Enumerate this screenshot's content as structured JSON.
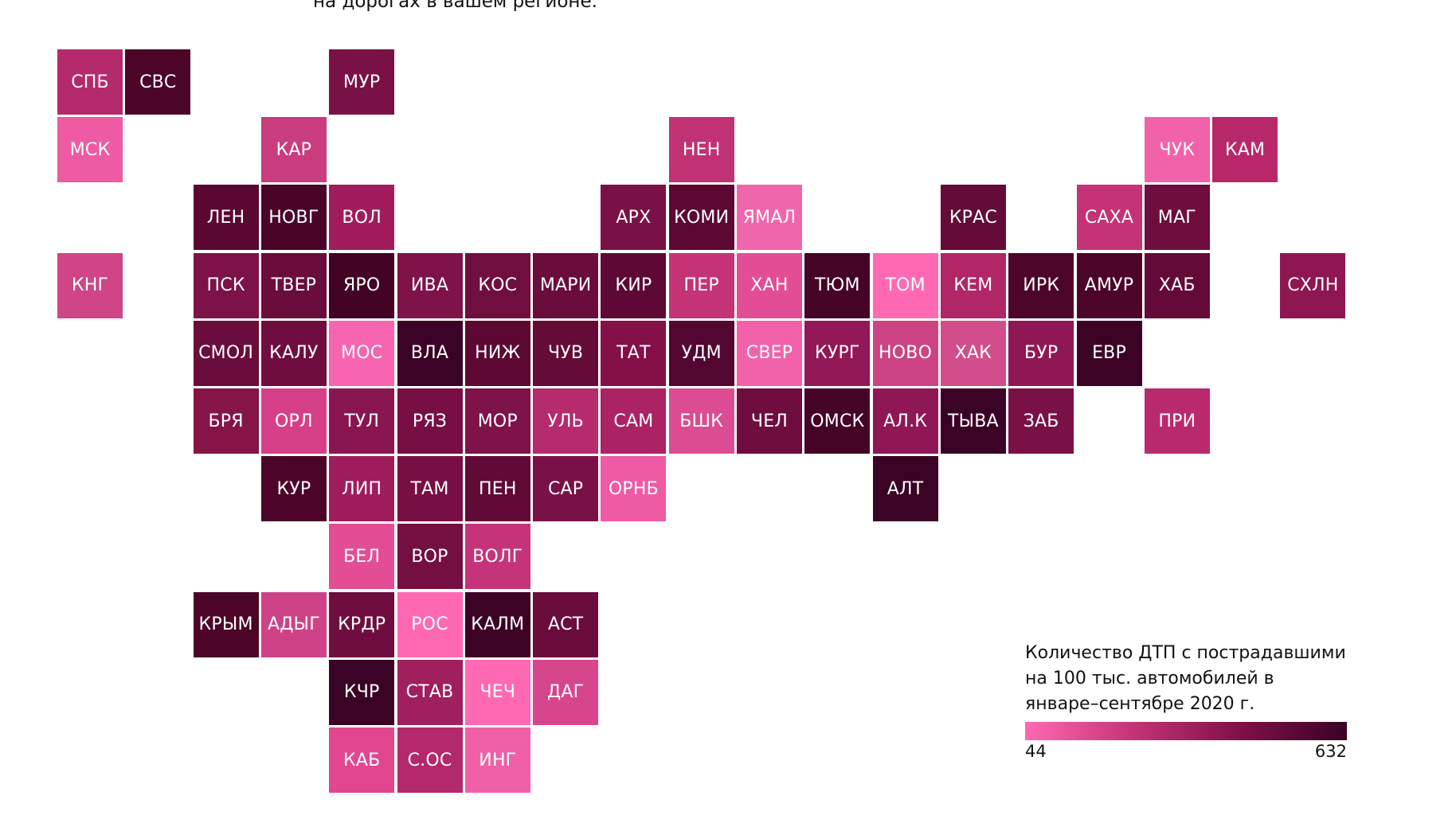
{
  "header": {
    "text": "на дорогах в вашем регионе."
  },
  "legend": {
    "title": "Количество ДТП с пострадавшими на 100 тыс. автомобилей в январе–сентябре 2020 г.",
    "min_label": "44",
    "max_label": "632",
    "min": 44,
    "max": 632,
    "colors": [
      "#ff69b4",
      "#c53377",
      "#801148",
      "#3a0224"
    ]
  },
  "tiles": [
    {
      "label": "СПБ",
      "col": 0,
      "row": 0,
      "color": "#b52a6c"
    },
    {
      "label": "СВС",
      "col": 1,
      "row": 0,
      "color": "#4c0527"
    },
    {
      "label": "МУР",
      "col": 4,
      "row": 0,
      "color": "#7a1146"
    },
    {
      "label": "МСК",
      "col": 0,
      "row": 1,
      "color": "#ee5aa4"
    },
    {
      "label": "КАР",
      "col": 3,
      "row": 1,
      "color": "#c93c7e"
    },
    {
      "label": "НЕН",
      "col": 9,
      "row": 1,
      "color": "#c03274"
    },
    {
      "label": "ЧУК",
      "col": 16,
      "row": 1,
      "color": "#f262aa"
    },
    {
      "label": "КАМ",
      "col": 17,
      "row": 1,
      "color": "#b9276b"
    },
    {
      "label": "ЛЕН",
      "col": 2,
      "row": 2,
      "color": "#5a0731"
    },
    {
      "label": "НОВГ",
      "col": 3,
      "row": 2,
      "color": "#4a0428"
    },
    {
      "label": "ВОЛ",
      "col": 4,
      "row": 2,
      "color": "#a01c5d"
    },
    {
      "label": "АРХ",
      "col": 8,
      "row": 2,
      "color": "#7a1146"
    },
    {
      "label": "КОМИ",
      "col": 9,
      "row": 2,
      "color": "#5c0833"
    },
    {
      "label": "ЯМАЛ",
      "col": 10,
      "row": 2,
      "color": "#f066ac"
    },
    {
      "label": "КРАС",
      "col": 13,
      "row": 2,
      "color": "#650b38"
    },
    {
      "label": "САХА",
      "col": 15,
      "row": 2,
      "color": "#c53377"
    },
    {
      "label": "МАГ",
      "col": 16,
      "row": 2,
      "color": "#6e0d3e"
    },
    {
      "label": "КНГ",
      "col": 0,
      "row": 3,
      "color": "#cf4586"
    },
    {
      "label": "ПСК",
      "col": 2,
      "row": 3,
      "color": "#7d1248"
    },
    {
      "label": "ТВЕР",
      "col": 3,
      "row": 3,
      "color": "#6a0c3c"
    },
    {
      "label": "ЯРО",
      "col": 4,
      "row": 3,
      "color": "#420324"
    },
    {
      "label": "ИВА",
      "col": 5,
      "row": 3,
      "color": "#7e1349"
    },
    {
      "label": "КОС",
      "col": 6,
      "row": 3,
      "color": "#6f0e3f"
    },
    {
      "label": "МАРИ",
      "col": 7,
      "row": 3,
      "color": "#6a0c3c"
    },
    {
      "label": "КИР",
      "col": 8,
      "row": 3,
      "color": "#5e0935"
    },
    {
      "label": "ПЕР",
      "col": 9,
      "row": 3,
      "color": "#c53377"
    },
    {
      "label": "ХАН",
      "col": 10,
      "row": 3,
      "color": "#e24d95"
    },
    {
      "label": "ТЮМ",
      "col": 11,
      "row": 3,
      "color": "#450325"
    },
    {
      "label": "ТОМ",
      "col": 12,
      "row": 3,
      "color": "#ff69b4"
    },
    {
      "label": "КЕМ",
      "col": 13,
      "row": 3,
      "color": "#b02667"
    },
    {
      "label": "ИРК",
      "col": 14,
      "row": 3,
      "color": "#4d0529"
    },
    {
      "label": "АМУР",
      "col": 15,
      "row": 3,
      "color": "#4c0528"
    },
    {
      "label": "ХАБ",
      "col": 16,
      "row": 3,
      "color": "#640a38"
    },
    {
      "label": "СХЛН",
      "col": 18,
      "row": 3,
      "color": "#8e1652"
    },
    {
      "label": "СМОЛ",
      "col": 2,
      "row": 4,
      "color": "#6a0c3c"
    },
    {
      "label": "КАЛУ",
      "col": 3,
      "row": 4,
      "color": "#6e0d3e"
    },
    {
      "label": "МОС",
      "col": 4,
      "row": 4,
      "color": "#f765b0"
    },
    {
      "label": "ВЛА",
      "col": 5,
      "row": 4,
      "color": "#3a0224"
    },
    {
      "label": "НИЖ",
      "col": 6,
      "row": 4,
      "color": "#5c0833"
    },
    {
      "label": "ЧУВ",
      "col": 7,
      "row": 4,
      "color": "#650b38"
    },
    {
      "label": "ТАТ",
      "col": 8,
      "row": 4,
      "color": "#850f47"
    },
    {
      "label": "УДМ",
      "col": 9,
      "row": 4,
      "color": "#520630"
    },
    {
      "label": "СВЕР",
      "col": 10,
      "row": 4,
      "color": "#f262aa"
    },
    {
      "label": "КУРГ",
      "col": 11,
      "row": 4,
      "color": "#931858"
    },
    {
      "label": "НОВО",
      "col": 12,
      "row": 4,
      "color": "#cc4384"
    },
    {
      "label": "ХАК",
      "col": 13,
      "row": 4,
      "color": "#d24d8b"
    },
    {
      "label": "БУР",
      "col": 14,
      "row": 4,
      "color": "#8f1756"
    },
    {
      "label": "ЕВР",
      "col": 15,
      "row": 4,
      "color": "#3c0224"
    },
    {
      "label": "БРЯ",
      "col": 2,
      "row": 5,
      "color": "#851447"
    },
    {
      "label": "ОРЛ",
      "col": 3,
      "row": 5,
      "color": "#d64089"
    },
    {
      "label": "ТУЛ",
      "col": 4,
      "row": 5,
      "color": "#891650"
    },
    {
      "label": "РЯЗ",
      "col": 5,
      "row": 5,
      "color": "#780f44"
    },
    {
      "label": "МОР",
      "col": 6,
      "row": 5,
      "color": "#7e1349"
    },
    {
      "label": "УЛЬ",
      "col": 7,
      "row": 5,
      "color": "#b62a6e"
    },
    {
      "label": "САМ",
      "col": 8,
      "row": 5,
      "color": "#ab2265"
    },
    {
      "label": "БШК",
      "col": 9,
      "row": 5,
      "color": "#db4c92"
    },
    {
      "label": "ЧЕЛ",
      "col": 10,
      "row": 5,
      "color": "#6e0d3e"
    },
    {
      "label": "ОМСК",
      "col": 11,
      "row": 5,
      "color": "#450325"
    },
    {
      "label": "АЛ.К",
      "col": 12,
      "row": 5,
      "color": "#8f1756"
    },
    {
      "label": "ТЫВА",
      "col": 13,
      "row": 5,
      "color": "#3a0224"
    },
    {
      "label": "ЗАБ",
      "col": 14,
      "row": 5,
      "color": "#7a1146"
    },
    {
      "label": "ПРИ",
      "col": 16,
      "row": 5,
      "color": "#b92a6d"
    },
    {
      "label": "КУР",
      "col": 3,
      "row": 6,
      "color": "#4c0528"
    },
    {
      "label": "ЛИП",
      "col": 4,
      "row": 6,
      "color": "#9f1c5d"
    },
    {
      "label": "ТАМ",
      "col": 5,
      "row": 6,
      "color": "#780f44"
    },
    {
      "label": "ПЕН",
      "col": 6,
      "row": 6,
      "color": "#610a36"
    },
    {
      "label": "САР",
      "col": 7,
      "row": 6,
      "color": "#7a1146"
    },
    {
      "label": "ОРНБ",
      "col": 8,
      "row": 6,
      "color": "#ee5aa4"
    },
    {
      "label": "АЛТ",
      "col": 12,
      "row": 6,
      "color": "#3a0224"
    },
    {
      "label": "БЕЛ",
      "col": 4,
      "row": 7,
      "color": "#e24d95"
    },
    {
      "label": "ВОР",
      "col": 5,
      "row": 7,
      "color": "#730f41"
    },
    {
      "label": "ВОЛГ",
      "col": 6,
      "row": 7,
      "color": "#c5347a"
    },
    {
      "label": "КРЫМ",
      "col": 2,
      "row": 8,
      "color": "#4c0528"
    },
    {
      "label": "АДЫГ",
      "col": 3,
      "row": 8,
      "color": "#ce4387"
    },
    {
      "label": "КРДР",
      "col": 4,
      "row": 8,
      "color": "#6e0d3e"
    },
    {
      "label": "РОС",
      "col": 5,
      "row": 8,
      "color": "#ff69b4"
    },
    {
      "label": "КАЛМ",
      "col": 6,
      "row": 8,
      "color": "#3c0224"
    },
    {
      "label": "АСТ",
      "col": 7,
      "row": 8,
      "color": "#6a0c3c"
    },
    {
      "label": "КЧР",
      "col": 4,
      "row": 9,
      "color": "#3a0224"
    },
    {
      "label": "СТАВ",
      "col": 5,
      "row": 9,
      "color": "#a01f5e"
    },
    {
      "label": "ЧЕЧ",
      "col": 6,
      "row": 9,
      "color": "#ff69b4"
    },
    {
      "label": "ДАГ",
      "col": 7,
      "row": 9,
      "color": "#d7458c"
    },
    {
      "label": "КАБ",
      "col": 4,
      "row": 10,
      "color": "#e2468f"
    },
    {
      "label": "С.ОС",
      "col": 5,
      "row": 10,
      "color": "#b3296b"
    },
    {
      "label": "ИНГ",
      "col": 6,
      "row": 10,
      "color": "#f060a8"
    }
  ]
}
